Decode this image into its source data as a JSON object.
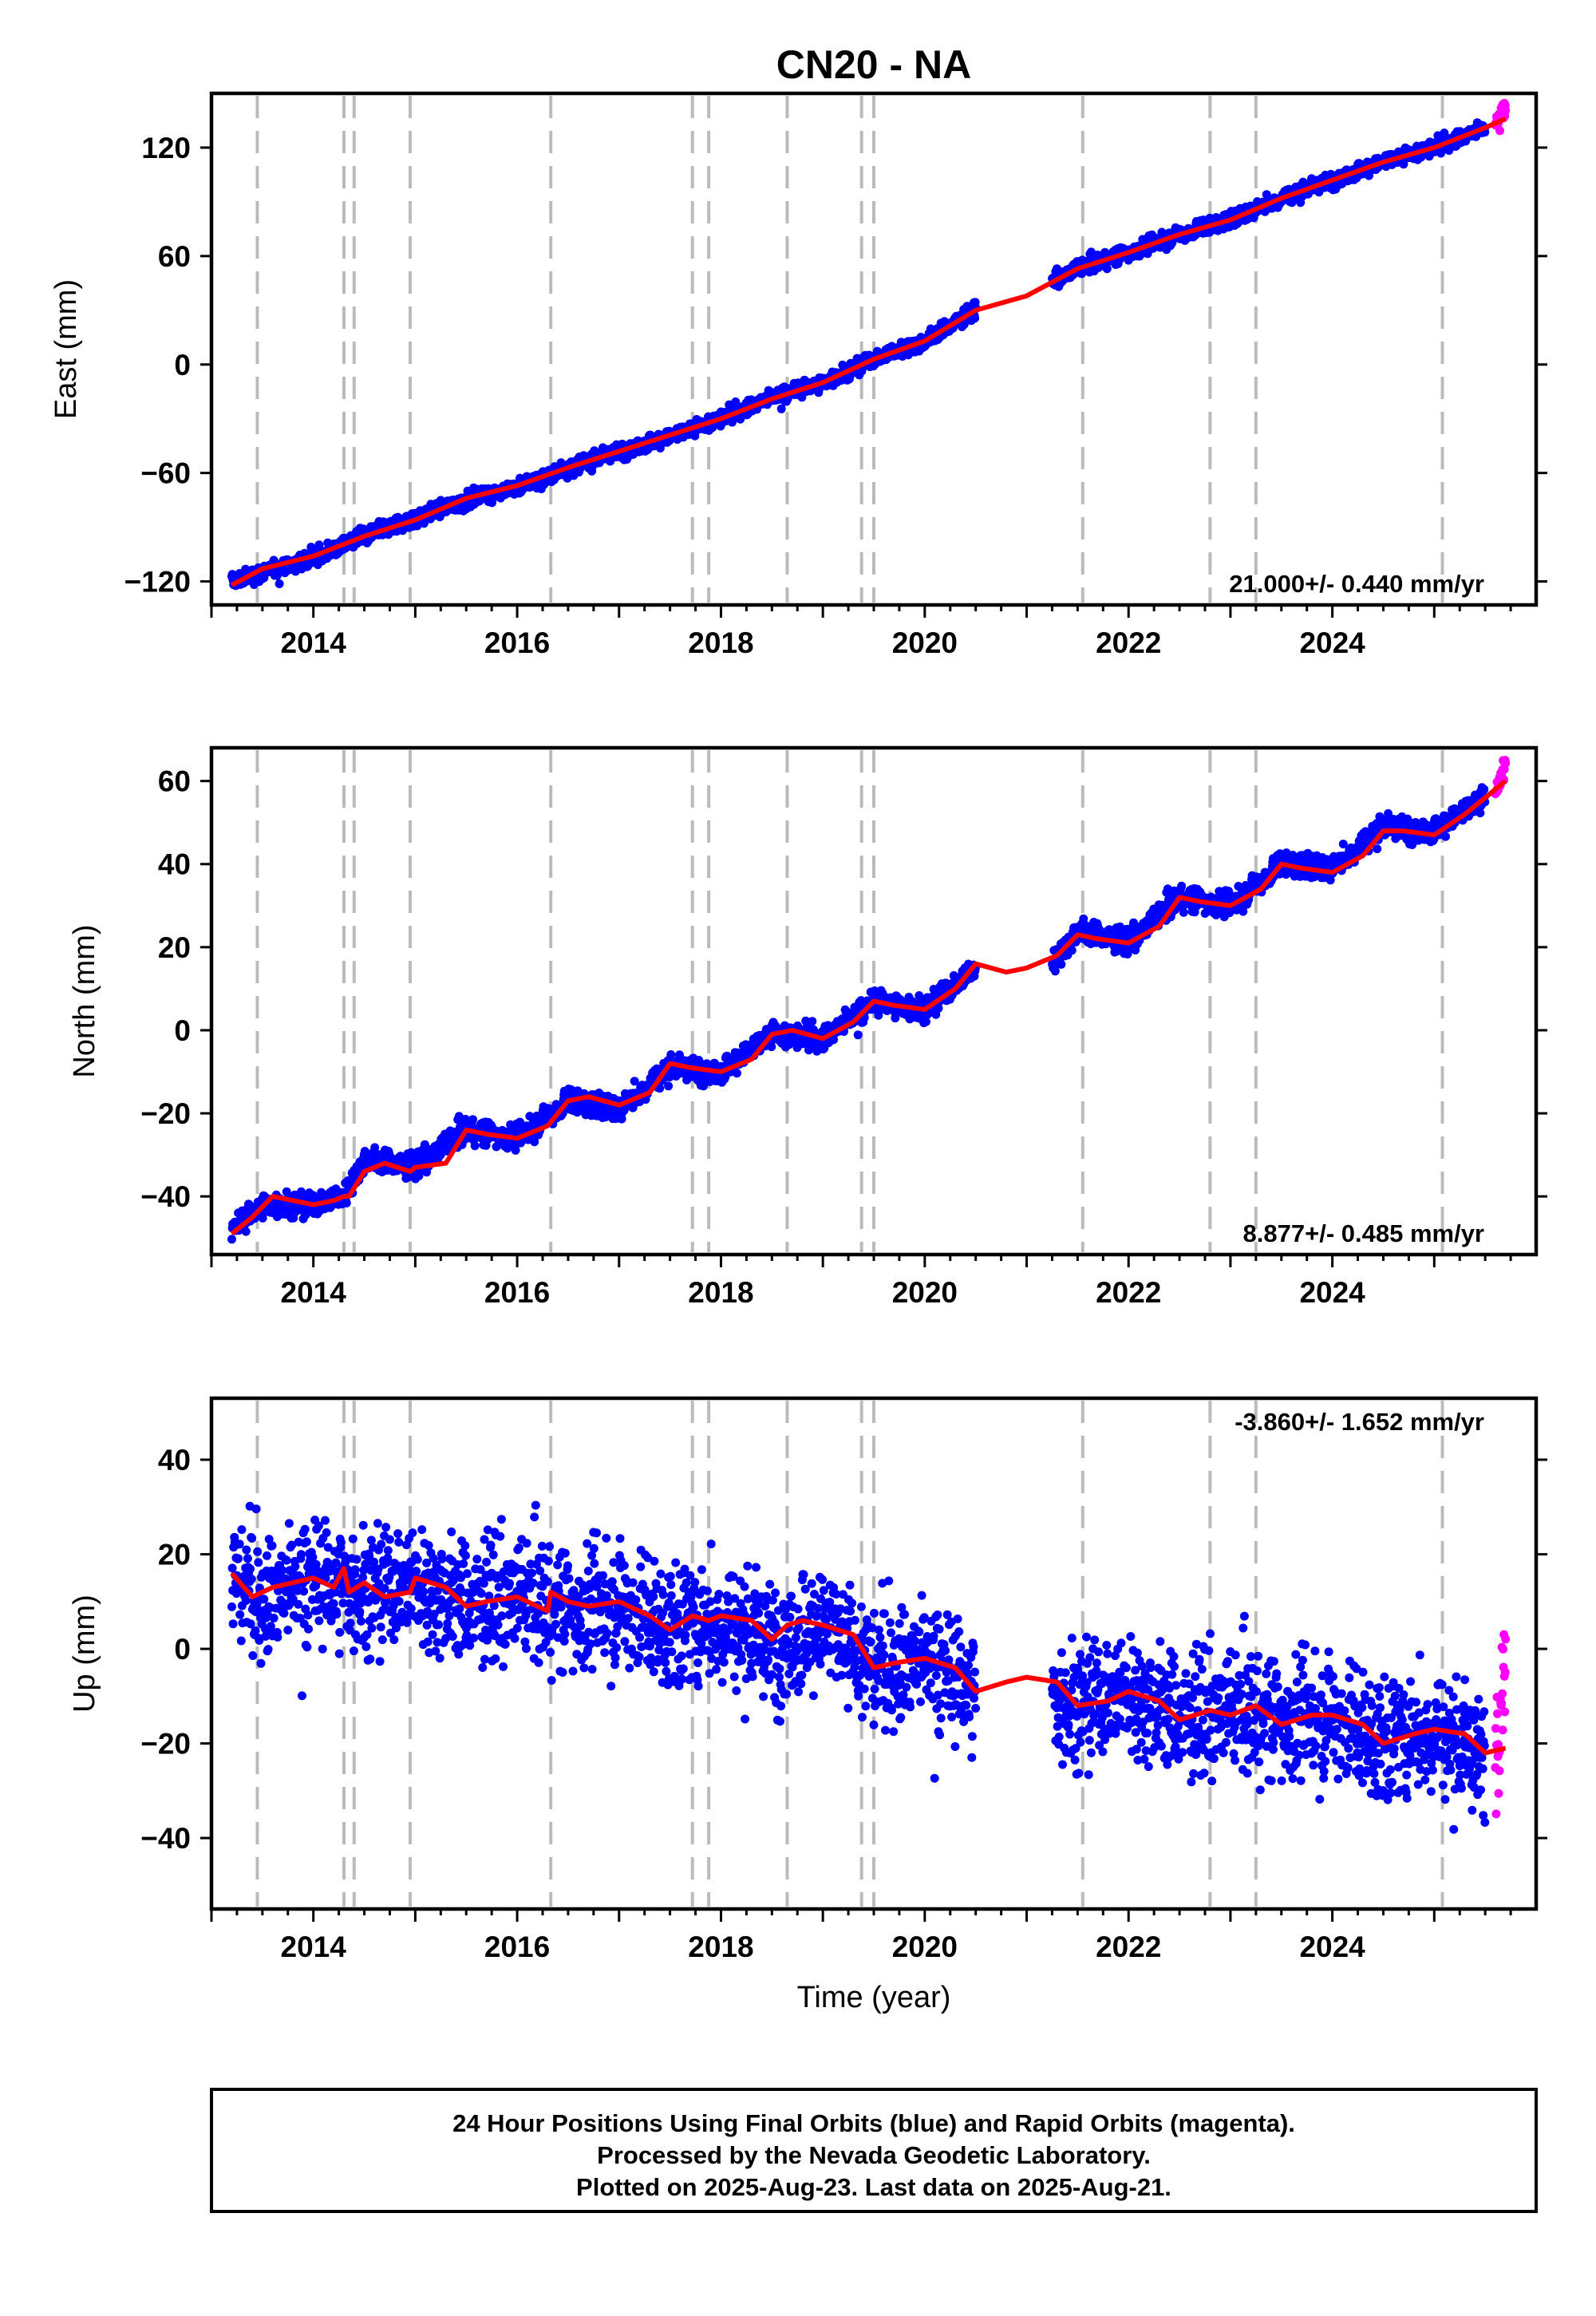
{
  "title": "CN20 - NA",
  "x_axis_label": "Time (year)",
  "x_tick_labels": [
    "2014",
    "2016",
    "2018",
    "2020",
    "2022",
    "2024"
  ],
  "event_lines": [
    2013.45,
    2014.3,
    2014.4,
    2014.95,
    2016.33,
    2017.72,
    2017.88,
    2018.65,
    2019.38,
    2019.5,
    2021.55,
    2022.8,
    2023.25,
    2025.08
  ],
  "colors": {
    "final_orbits": "#0000ff",
    "rapid_orbits": "#ff00ff",
    "model_fit": "#ff0000",
    "event_lines": "#bbbbbb",
    "frame": "#000000"
  },
  "footer": {
    "line1": "24 Hour Positions Using Final Orbits (blue) and Rapid Orbits (magenta).",
    "line2": "Processed by the Nevada Geodetic Laboratory.",
    "line3": "Plotted on 2025-Aug-23. Last data on 2025-Aug-21."
  },
  "chart_data": [
    {
      "type": "scatter",
      "ylabel": "East (mm)",
      "xlim": [
        2013.0,
        2026.0
      ],
      "ylim": [
        -133,
        150
      ],
      "yticks": [
        -120,
        -60,
        0,
        60,
        120
      ],
      "ytick_labels": [
        "−120",
        "−60",
        "0",
        "60",
        "120"
      ],
      "rate_label": "21.000+/- 0.440 mm/yr",
      "rate_position": "bottom-right",
      "data_gap": [
        2020.5,
        2021.25
      ],
      "series": [
        {
          "name": "Final Orbits (blue)",
          "x": [
            2013.2,
            2013.5,
            2014.0,
            2014.5,
            2015.0,
            2015.5,
            2016.0,
            2016.5,
            2017.0,
            2017.5,
            2018.0,
            2018.5,
            2019.0,
            2019.5,
            2020.0,
            2020.5,
            2021.25,
            2021.5,
            2022.0,
            2022.5,
            2023.0,
            2023.5,
            2024.0,
            2024.5,
            2025.0,
            2025.5
          ],
          "y": [
            -120,
            -115,
            -107,
            -95,
            -85,
            -75,
            -68,
            -57,
            -48,
            -40,
            -30,
            -18,
            -10,
            3,
            13,
            30,
            46,
            53,
            62,
            72,
            80,
            92,
            102,
            112,
            120,
            131
          ],
          "noise_mm": 3
        },
        {
          "name": "Rapid Orbits (magenta)",
          "x": [
            2025.6,
            2025.65,
            2025.7
          ],
          "y": [
            133,
            138,
            143
          ],
          "noise_mm": 3
        },
        {
          "name": "model fit (red)",
          "x": [
            2013.2,
            2013.5,
            2014.0,
            2014.5,
            2015.0,
            2015.5,
            2016.0,
            2016.5,
            2017.0,
            2017.5,
            2018.0,
            2018.5,
            2019.0,
            2019.5,
            2020.0,
            2020.5,
            2021.0,
            2021.5,
            2022.0,
            2022.5,
            2023.0,
            2023.5,
            2024.0,
            2024.5,
            2025.0,
            2025.5,
            2025.7
          ],
          "y": [
            -122,
            -113,
            -106,
            -95,
            -86,
            -74,
            -67,
            -57,
            -48,
            -39,
            -30,
            -19,
            -10,
            3,
            13,
            30,
            38,
            53,
            62,
            72,
            80,
            92,
            102,
            112,
            120,
            131,
            136
          ]
        }
      ]
    },
    {
      "type": "scatter",
      "ylabel": "North (mm)",
      "xlim": [
        2013.0,
        2026.0
      ],
      "ylim": [
        -54,
        68
      ],
      "yticks": [
        -40,
        -20,
        0,
        20,
        40,
        60
      ],
      "ytick_labels": [
        "−40",
        "−20",
        "0",
        "20",
        "40",
        "60"
      ],
      "rate_label": "8.877+/- 0.485 mm/yr",
      "rate_position": "bottom-right",
      "data_gap": [
        2020.5,
        2021.25
      ],
      "series": [
        {
          "name": "Final Orbits (blue)",
          "x": [
            2013.2,
            2013.5,
            2014.0,
            2014.3,
            2014.5,
            2015.0,
            2015.5,
            2016.0,
            2016.5,
            2017.0,
            2017.5,
            2018.0,
            2018.5,
            2019.0,
            2019.5,
            2020.0,
            2020.5,
            2021.25,
            2021.5,
            2022.0,
            2022.5,
            2023.0,
            2023.5,
            2024.0,
            2024.5,
            2025.0,
            2025.5
          ],
          "y": [
            -48,
            -42,
            -42,
            -40,
            -31,
            -33,
            -24,
            -26,
            -17,
            -19,
            -9,
            -10,
            -1,
            -2,
            7,
            5,
            15,
            16,
            24,
            21,
            32,
            30,
            40,
            39,
            49,
            48,
            56
          ],
          "noise_mm": 2
        },
        {
          "name": "Rapid Orbits (magenta)",
          "x": [
            2025.6,
            2025.65,
            2025.7
          ],
          "y": [
            57,
            61,
            64
          ],
          "noise_mm": 2
        },
        {
          "name": "model fit (red)",
          "x": [
            2013.2,
            2013.4,
            2013.6,
            2013.8,
            2014.0,
            2014.2,
            2014.3,
            2014.35,
            2014.5,
            2014.7,
            2014.95,
            2015.0,
            2015.3,
            2015.5,
            2015.7,
            2016.0,
            2016.3,
            2016.5,
            2016.7,
            2017.0,
            2017.3,
            2017.5,
            2017.7,
            2018.0,
            2018.3,
            2018.5,
            2018.7,
            2019.0,
            2019.3,
            2019.5,
            2019.7,
            2020.0,
            2020.3,
            2020.5,
            2020.8,
            2021.0,
            2021.3,
            2021.5,
            2021.7,
            2022.0,
            2022.3,
            2022.5,
            2022.7,
            2023.0,
            2023.3,
            2023.5,
            2023.7,
            2024.0,
            2024.3,
            2024.5,
            2024.7,
            2025.0,
            2025.3,
            2025.5,
            2025.7
          ],
          "y": [
            -49,
            -45,
            -40,
            -41,
            -42,
            -41,
            -40,
            -40,
            -34,
            -32,
            -34,
            -33,
            -32,
            -24,
            -25,
            -26,
            -23,
            -17,
            -16,
            -18,
            -15,
            -8,
            -9,
            -10,
            -7,
            -1,
            0,
            -2,
            2,
            7,
            6,
            5,
            10,
            16,
            14,
            15,
            18,
            23,
            22,
            21,
            25,
            32,
            31,
            30,
            34,
            40,
            39,
            38,
            42,
            48,
            48,
            47,
            52,
            56,
            60
          ]
        }
      ]
    },
    {
      "type": "scatter",
      "ylabel": "Up (mm)",
      "xlim": [
        2013.0,
        2026.0
      ],
      "ylim": [
        -55,
        53
      ],
      "yticks": [
        -40,
        -20,
        0,
        20,
        40
      ],
      "ytick_labels": [
        "−40",
        "−20",
        "0",
        "20",
        "40"
      ],
      "rate_label": "-3.860+/- 1.652 mm/yr",
      "rate_position": "top-right",
      "data_gap": [
        2020.5,
        2021.25
      ],
      "series": [
        {
          "name": "Final Orbits (blue)",
          "x": [
            2013.2,
            2013.5,
            2014.0,
            2014.5,
            2015.0,
            2015.5,
            2016.0,
            2016.5,
            2017.0,
            2017.5,
            2018.0,
            2018.5,
            2019.0,
            2019.5,
            2020.0,
            2020.5,
            2021.25,
            2021.5,
            2022.0,
            2022.5,
            2023.0,
            2023.5,
            2024.0,
            2024.5,
            2025.0,
            2025.5
          ],
          "y": [
            15,
            11,
            15,
            12,
            14,
            9,
            11,
            8,
            10,
            4,
            6,
            1,
            5,
            -4,
            -2,
            -9,
            -11,
            -12,
            -9,
            -15,
            -13,
            -15,
            -14,
            -20,
            -17,
            -24
          ],
          "noise_mm": 9
        },
        {
          "name": "Rapid Orbits (magenta)",
          "x": [
            2025.6,
            2025.65,
            2025.7
          ],
          "y": [
            -20,
            -10,
            0
          ],
          "noise_mm": 9
        },
        {
          "name": "model fit (red)",
          "x": [
            2013.2,
            2013.4,
            2013.6,
            2013.8,
            2014.0,
            2014.2,
            2014.3,
            2014.35,
            2014.5,
            2014.7,
            2014.95,
            2015.0,
            2015.3,
            2015.5,
            2015.7,
            2016.0,
            2016.3,
            2016.33,
            2016.5,
            2016.7,
            2017.0,
            2017.3,
            2017.5,
            2017.72,
            2017.88,
            2018.0,
            2018.3,
            2018.5,
            2018.65,
            2018.8,
            2019.0,
            2019.3,
            2019.5,
            2019.7,
            2020.0,
            2020.3,
            2020.5,
            2020.8,
            2021.0,
            2021.3,
            2021.5,
            2021.8,
            2022.0,
            2022.3,
            2022.5,
            2022.8,
            2023.0,
            2023.25,
            2023.5,
            2023.8,
            2024.0,
            2024.3,
            2024.5,
            2024.8,
            2025.0,
            2025.3,
            2025.5,
            2025.7
          ],
          "y": [
            16,
            11,
            13,
            14,
            15,
            13,
            17,
            12,
            14,
            11,
            12,
            15,
            13,
            9,
            10,
            11,
            8,
            12,
            10,
            9,
            10,
            7,
            4,
            7,
            6,
            7,
            6,
            2,
            5,
            6,
            5,
            3,
            -4,
            -3,
            -2,
            -4,
            -9,
            -7,
            -6,
            -7,
            -12,
            -11,
            -9,
            -11,
            -15,
            -13,
            -14,
            -12,
            -16,
            -14,
            -14,
            -16,
            -20,
            -18,
            -17,
            -18,
            -22,
            -21
          ]
        }
      ]
    }
  ]
}
